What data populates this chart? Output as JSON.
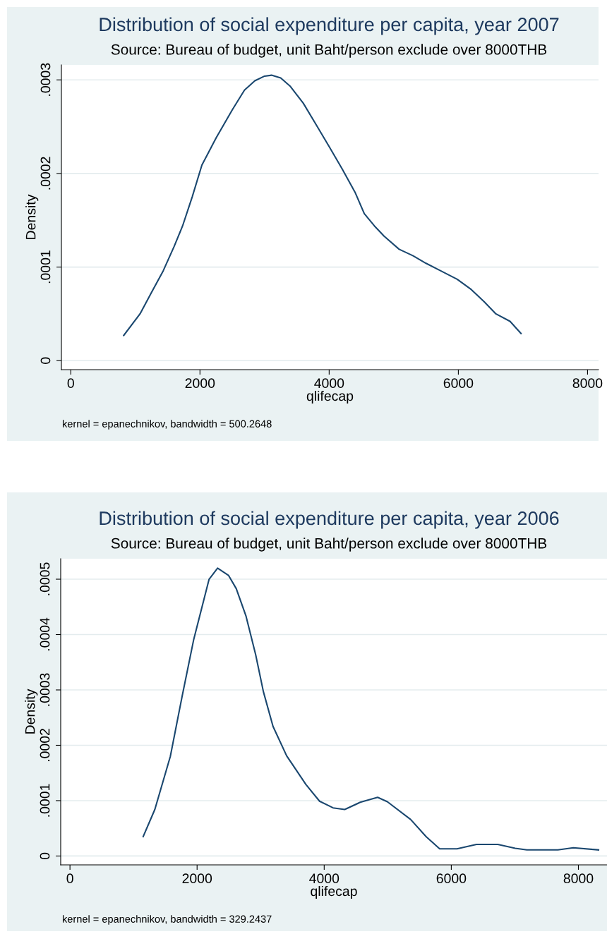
{
  "chart_data": [
    {
      "type": "line",
      "title": "Distribution of social expenditure per capita, year 2007",
      "subtitle": "Source: Bureau of budget, unit Baht/person exclude over 8000THB",
      "xlabel": "qlifecap",
      "ylabel": "Density",
      "annotations": [
        "kernel = epanechnikov, bandwidth = 500.2648"
      ],
      "grid": "y",
      "xlim": [
        -145,
        8170
      ],
      "ylim": [
        -9.6e-06,
        0.000316
      ],
      "xticks": [
        0,
        2000,
        4000,
        6000,
        8000
      ],
      "yticks": [
        {
          "value": 0,
          "label": "0"
        },
        {
          "value": 0.0001,
          "label": ".0001"
        },
        {
          "value": 0.0002,
          "label": ".0002"
        },
        {
          "value": 0.0003,
          "label": ".0003"
        }
      ],
      "series": [
        {
          "color": "#1a476f",
          "x": [
            820,
            1072,
            1250,
            1431,
            1600,
            1731,
            1880,
            2030,
            2250,
            2500,
            2689,
            2850,
            3000,
            3108,
            3250,
            3400,
            3600,
            3800,
            4006,
            4200,
            4400,
            4544,
            4700,
            4850,
            5084,
            5300,
            5500,
            5700,
            5982,
            6200,
            6400,
            6581,
            6800,
            6970
          ],
          "values": [
            2.7e-05,
            5e-05,
            7.3e-05,
            9.6e-05,
            0.000122,
            0.000144,
            0.000175,
            0.000209,
            0.000238,
            0.000268,
            0.000289,
            0.000299,
            0.000304,
            0.000305,
            0.000302,
            0.000293,
            0.000275,
            0.000252,
            0.000228,
            0.000205,
            0.00018,
            0.000157,
            0.000144,
            0.000133,
            0.000119,
            0.000112,
            0.000104,
            9.7e-05,
            8.7e-05,
            7.6e-05,
            6.3e-05,
            5e-05,
            4.2e-05,
            2.9e-05
          ]
        }
      ]
    },
    {
      "type": "line",
      "title": "Distribution of social expenditure per capita, year 2006",
      "subtitle": "Source: Bureau of budget, unit Baht/person exclude over 8000THB",
      "xlabel": "qlifecap",
      "ylabel": "Density",
      "annotations": [
        "kernel = epanechnikov, bandwidth = 329.2437"
      ],
      "grid": "y",
      "xlim": [
        -146,
        8450
      ],
      "ylim": [
        -1.6e-05,
        0.000537
      ],
      "xticks": [
        0,
        2000,
        4000,
        6000,
        8000
      ],
      "yticks": [
        {
          "value": 0,
          "label": "0"
        },
        {
          "value": 0.0001,
          "label": ".0001"
        },
        {
          "value": 0.0002,
          "label": ".0002"
        },
        {
          "value": 0.0003,
          "label": ".0003"
        },
        {
          "value": 0.0004,
          "label": ".0004"
        },
        {
          "value": 0.0005,
          "label": ".0005"
        }
      ],
      "series": [
        {
          "color": "#1a476f",
          "x": [
            1152,
            1335,
            1579,
            1762,
            1945,
            2189,
            2323,
            2494,
            2616,
            2768,
            2921,
            3043,
            3195,
            3409,
            3713,
            3927,
            4140,
            4323,
            4567,
            4841,
            4994,
            5360,
            5604,
            5817,
            6091,
            6396,
            6732,
            7006,
            7189,
            7677,
            7921,
            8317
          ],
          "values": [
            3.5e-05,
            8.4e-05,
            0.00018,
            0.000287,
            0.00039,
            0.0005,
            0.00052,
            0.000507,
            0.000483,
            0.000434,
            0.000364,
            0.000297,
            0.000234,
            0.000181,
            0.000129,
            9.9e-05,
            8.7e-05,
            8.4e-05,
            9.7e-05,
            0.000106,
            9.8e-05,
            6.6e-05,
            3.5e-05,
            1.3e-05,
            1.3e-05,
            2.1e-05,
            2.1e-05,
            1.4e-05,
            1.1e-05,
            1.1e-05,
            1.5e-05,
            1.1e-05
          ]
        }
      ]
    }
  ]
}
